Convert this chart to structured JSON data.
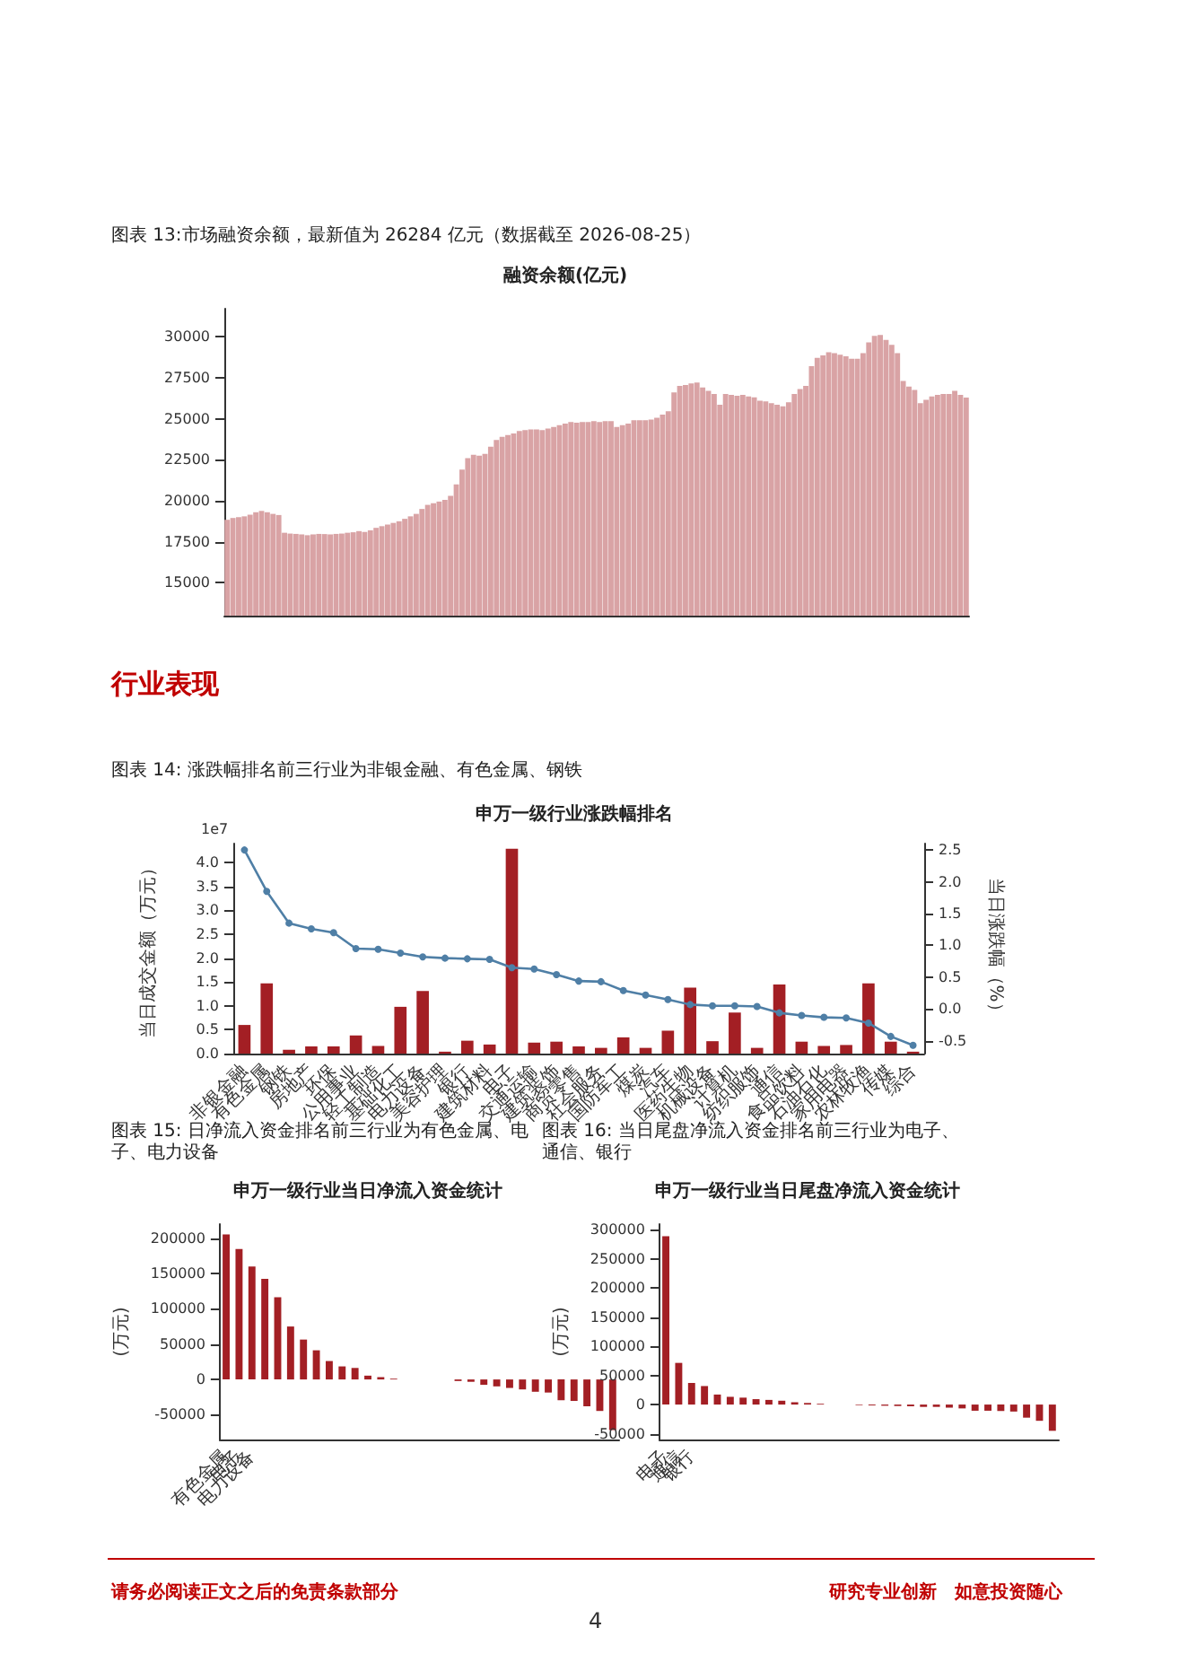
{
  "chart_data": [
    {
      "type": "bar",
      "title": "图表 13:市场融资余额，最新值为 26284 亿元（数据截至 2026-08-25）",
      "subtitle": "融资余额(亿元)",
      "categories": [
        null,
        null,
        null,
        null,
        null,
        null,
        null,
        null,
        null,
        null,
        null,
        null,
        null,
        null,
        null,
        null,
        null,
        null,
        null,
        null,
        null,
        null,
        null,
        null,
        null,
        null,
        null,
        null,
        null,
        null,
        null,
        null,
        null,
        null,
        null,
        null,
        null,
        null,
        null,
        null,
        null,
        null,
        null,
        null,
        null,
        null,
        null,
        null,
        null,
        null,
        null,
        null,
        null,
        null,
        null,
        null,
        null,
        null,
        null,
        null,
        null,
        null,
        null,
        null,
        null,
        null,
        null,
        null,
        null,
        null,
        null,
        null,
        null,
        null,
        null,
        null,
        null,
        null,
        null,
        null,
        null,
        null,
        null,
        null,
        null,
        null,
        null,
        null,
        null,
        null,
        null,
        null,
        null,
        null,
        null,
        null,
        null,
        null,
        null,
        null,
        null,
        null,
        null,
        null,
        null,
        null,
        null,
        null,
        null,
        null,
        null,
        null,
        null,
        null,
        null,
        null,
        null,
        null,
        null,
        null,
        null,
        null,
        null,
        null,
        null,
        null,
        null,
        null,
        null,
        null
      ],
      "values": [
        18840,
        18950,
        19000,
        19050,
        19150,
        19300,
        19380,
        19300,
        19200,
        19130,
        18050,
        18000,
        17980,
        17950,
        17900,
        17950,
        17980,
        17970,
        17950,
        17980,
        18000,
        18050,
        18080,
        18150,
        18100,
        18200,
        18350,
        18450,
        18550,
        18650,
        18750,
        18900,
        19050,
        19200,
        19500,
        19750,
        19850,
        19950,
        20050,
        20300,
        21000,
        21900,
        22600,
        22800,
        22750,
        22850,
        23300,
        23700,
        23900,
        24000,
        24100,
        24250,
        24300,
        24350,
        24350,
        24300,
        24400,
        24500,
        24600,
        24700,
        24800,
        24750,
        24800,
        24800,
        24850,
        24800,
        24850,
        24850,
        24500,
        24600,
        24700,
        24900,
        24900,
        24900,
        24950,
        25050,
        25250,
        25450,
        26600,
        27000,
        27050,
        27150,
        27200,
        26900,
        26700,
        26500,
        25850,
        26500,
        26450,
        26400,
        26450,
        26350,
        26300,
        26100,
        26050,
        25950,
        25850,
        25750,
        26000,
        26500,
        26800,
        27000,
        28200,
        28700,
        28850,
        29050,
        29000,
        28900,
        28800,
        28650,
        28650,
        29000,
        29650,
        30050,
        30100,
        29800,
        29500,
        29000,
        27300,
        26950,
        26750,
        25950,
        26150,
        26350,
        26450,
        26500,
        26500,
        26700,
        26450,
        26284
      ],
      "color": "#d9a3a5",
      "ylim": [
        13000,
        31700
      ],
      "yticks": [
        15000,
        17500,
        20000,
        22500,
        25000,
        27500,
        30000
      ],
      "grid": false,
      "tick_labels": "y",
      "annotations": [
        "行业表现"
      ]
    },
    {
      "type": "bar",
      "title": "图表 14: 涨跌幅排名前三行业为非银金融、有色金属、钢铁",
      "subtitle": "申万一级行业涨跌幅排名",
      "ylabel": "当日成交金额（万元）",
      "y2label": "当日涨跌幅（%）",
      "categories": [
        "非银金融",
        "有色金属",
        "钢铁",
        "房地产",
        "环保",
        "公用事业",
        "轻工制造",
        "基础化工",
        "电力设备",
        "美容护理",
        "银行",
        "建筑材料",
        "电子",
        "交通运输",
        "建筑装饰",
        "商贸零售",
        "社会服务",
        "国防军工",
        "煤炭",
        "汽车",
        "医药生物",
        "机械设备",
        "计算机",
        "纺织服饰",
        "通信",
        "食品饮料",
        "石油石化",
        "家用电器",
        "农林牧渔",
        "传媒",
        "综合"
      ],
      "series": [
        {
          "type": "bar",
          "color": "#a31f24",
          "values": [
            0.6,
            1.47,
            0.08,
            0.15,
            0.15,
            0.38,
            0.16,
            0.98,
            1.31,
            0.04,
            0.27,
            0.19,
            4.29,
            0.23,
            0.25,
            0.15,
            0.12,
            0.34,
            0.12,
            0.48,
            1.38,
            0.26,
            0.86,
            0.12,
            1.45,
            0.25,
            0.16,
            0.18,
            1.47,
            0.25,
            0.04
          ]
        },
        {
          "type": "line",
          "axis": "y2",
          "color": "#4f7fa6",
          "values": [
            2.5,
            1.85,
            1.35,
            1.26,
            1.2,
            0.95,
            0.94,
            0.88,
            0.82,
            0.8,
            0.79,
            0.78,
            0.65,
            0.63,
            0.54,
            0.44,
            0.43,
            0.29,
            0.22,
            0.15,
            0.07,
            0.05,
            0.05,
            0.04,
            -0.06,
            -0.1,
            -0.13,
            -0.14,
            -0.22,
            -0.43,
            -0.57
          ]
        }
      ],
      "ylim": [
        0,
        4.4
      ],
      "yticks": [
        {
          "value": 0,
          "label": "0.0"
        },
        0.5,
        {
          "value": 1,
          "label": "1.0"
        },
        1.5,
        {
          "value": 2,
          "label": "2.0"
        },
        2.5,
        {
          "value": 3,
          "label": "3.0"
        },
        3.5,
        {
          "value": 4,
          "label": "4.0"
        }
      ],
      "y2lim": [
        -0.7,
        2.6
      ],
      "y2ticks": [
        -0.5,
        {
          "value": 0,
          "label": "0.0"
        },
        0.5,
        {
          "value": 1,
          "label": "1.0"
        },
        1.5,
        {
          "value": 2,
          "label": "2.0"
        },
        2.5
      ],
      "marker": "circle",
      "grid": false,
      "annotations": [
        "1e7"
      ]
    },
    {
      "type": "bar",
      "title": "图表 15: 日净流入资金排名前三行业为有色金属、电子、电力设备",
      "subtitle": "申万一级行业当日净流入资金统计",
      "ylabel": "(万元)",
      "categories": [
        "有色金属",
        "电子",
        "电力设备",
        null,
        null,
        null,
        null,
        null,
        null,
        null,
        null,
        null,
        null,
        null,
        null,
        null,
        null,
        null,
        null,
        null,
        null,
        null,
        null,
        null,
        null,
        null,
        null,
        null,
        null,
        null,
        null
      ],
      "values": [
        205400,
        184800,
        159800,
        142400,
        116300,
        75000,
        56500,
        41300,
        26100,
        18500,
        16300,
        5400,
        3300,
        1100,
        null,
        null,
        null,
        null,
        -2200,
        -3300,
        -7600,
        -9800,
        -12000,
        -14100,
        -17400,
        -18500,
        -29300,
        -30400,
        -38000,
        -44600,
        -71700
      ],
      "color": "#a31f24",
      "ylim": [
        -85000,
        220000
      ],
      "yticks": [
        -50000,
        0,
        50000,
        100000,
        150000,
        200000
      ],
      "grid": false
    },
    {
      "type": "bar",
      "title": "图表 16: 当日尾盘净流入资金排名前三行业为电子、通信、银行",
      "subtitle": "申万一级行业当日尾盘净流入资金统计",
      "ylabel": "(万元)",
      "categories": [
        "电子",
        "通信",
        "银行",
        null,
        null,
        null,
        null,
        null,
        null,
        null,
        null,
        null,
        null,
        null,
        null,
        null,
        null,
        null,
        null,
        null,
        null,
        null,
        null,
        null,
        null,
        null,
        null,
        null,
        null,
        null,
        null
      ],
      "values": [
        289200,
        71600,
        37100,
        31800,
        17200,
        13300,
        11900,
        9300,
        8000,
        6600,
        4000,
        2700,
        1300,
        null,
        null,
        -1000,
        -1500,
        -2000,
        -2500,
        -3000,
        -4000,
        -4000,
        -5300,
        -6600,
        -10600,
        -10600,
        -11000,
        -12000,
        -22500,
        -27900,
        -45100
      ],
      "color": "#a31f24",
      "ylim": [
        -60000,
        310000
      ],
      "yticks": [
        -50000,
        0,
        50000,
        100000,
        150000,
        200000,
        250000,
        300000
      ],
      "grid": false,
      "annotations": [
        "请务必阅读正文之后的免责条款部分",
        "研究专业创新　如意投资随心",
        "4"
      ]
    }
  ]
}
